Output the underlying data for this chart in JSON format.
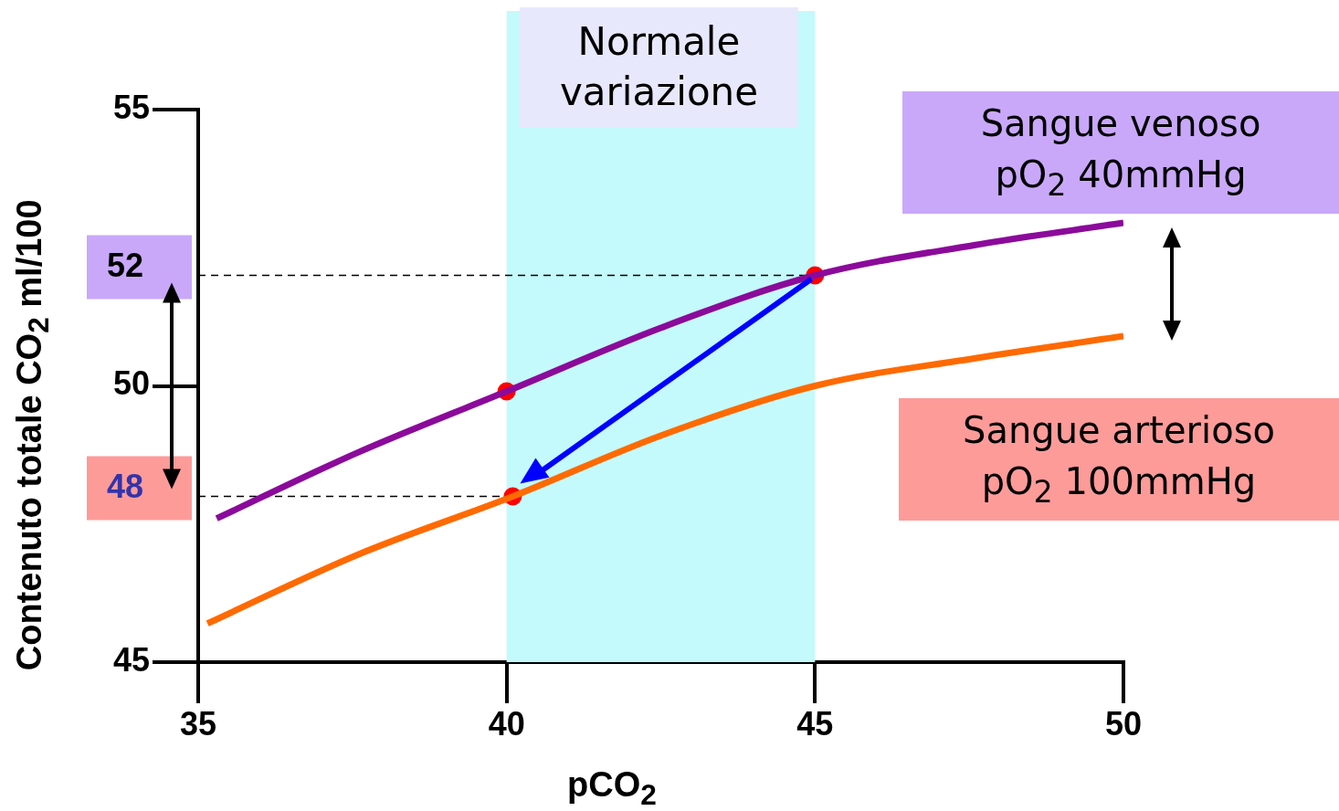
{
  "chart_data": {
    "type": "line",
    "xlabel": "pCO$_{2}$",
    "ylabel": "Contenuto totale CO$_{2}$ ml/100",
    "xlim": [
      35,
      50
    ],
    "xticks": [
      35,
      40,
      45,
      50
    ],
    "ylim": [
      45,
      55
    ],
    "yticks": [
      45,
      50,
      55
    ],
    "grid": false,
    "legend": false,
    "marker": "none",
    "line_style": "solid",
    "bands": [
      {
        "axis": "x",
        "from": 40,
        "to": 45,
        "label": "Normale variazione",
        "color": "#c4fafc"
      }
    ],
    "ref_lines": [
      {
        "axis": "y",
        "value": 52,
        "label": "52",
        "color": "#000000",
        "line_style": "dashed"
      },
      {
        "axis": "y",
        "value": 48,
        "label": "48",
        "color": "#000000",
        "line_style": "dashed"
      }
    ],
    "series": [
      {
        "name": "Sangue venoso\npO$_{2}$ 40mmHg",
        "color": "#8b0a9a",
        "x": [
          35.3,
          37.6,
          40,
          42.5,
          45,
          47.6,
          50
        ],
        "values": [
          47.6,
          48.8,
          49.9,
          51.05,
          52,
          52.55,
          52.95
        ]
      },
      {
        "name": "Sangue arterioso\npO$_{2}$ 100mmHg",
        "color": "#ff6a00",
        "x": [
          35.15,
          37.6,
          40.1,
          42.5,
          45,
          47.6,
          50
        ],
        "values": [
          45.7,
          46.95,
          48,
          49.1,
          50,
          50.5,
          50.9
        ]
      },
      {
        "type": "scatter",
        "color": "#ff0000",
        "marker": "circle",
        "x": [
          40,
          45,
          40.1
        ],
        "values": [
          49.9,
          52,
          48
        ]
      }
    ]
  }
}
